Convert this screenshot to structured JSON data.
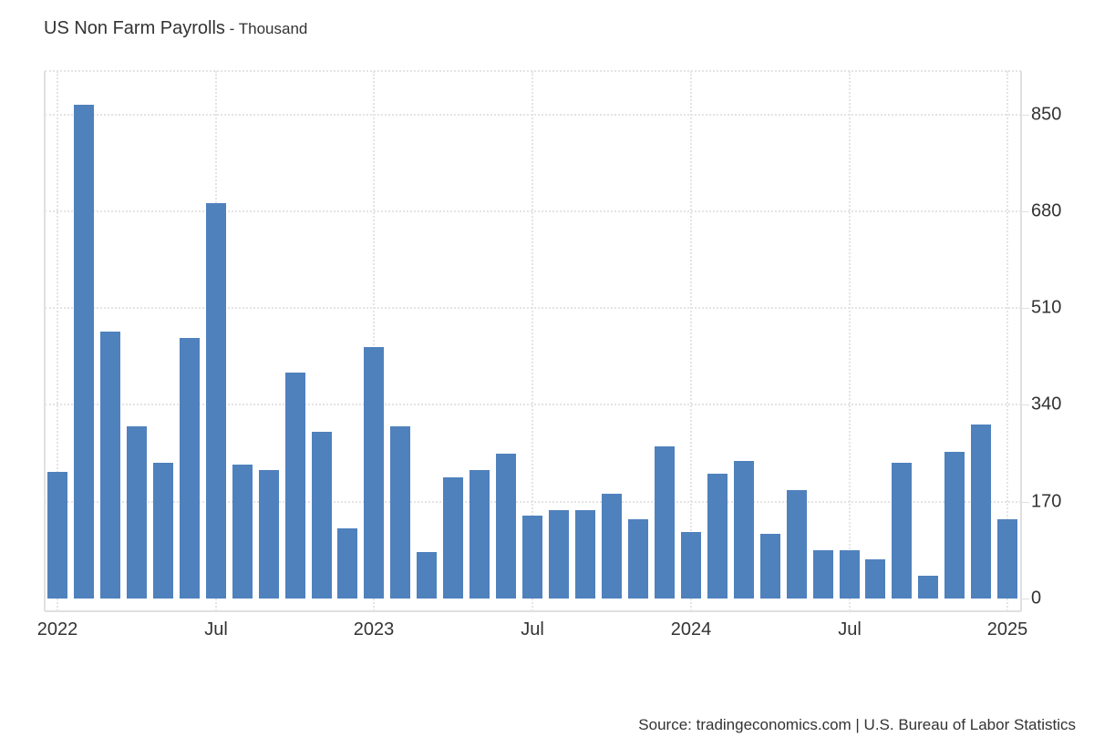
{
  "header": {
    "title": "US Non Farm Payrolls",
    "unit": " - Thousand"
  },
  "footer": {
    "source": "Source: tradingeconomics.com | U.S. Bureau of Labor Statistics"
  },
  "colors": {
    "bar": "#4f81bd",
    "grid": "#e4e4e4",
    "text": "#333333"
  },
  "chart_data": {
    "type": "bar",
    "title": "US Non Farm Payrolls",
    "subtitle": "Thousand",
    "xlabel": "",
    "ylabel": "Thousand",
    "ylim": [
      0,
      935
    ],
    "yticks": [
      0,
      170,
      340,
      510,
      680,
      850
    ],
    "xtick_labels": [
      "2022",
      "Jul",
      "2023",
      "Jul",
      "2024",
      "Jul",
      "2025"
    ],
    "grid": true,
    "y_axis_position": "right",
    "legend": null,
    "categories": [
      "Jan 2022",
      "Feb 2022",
      "Mar 2022",
      "Apr 2022",
      "May 2022",
      "Jun 2022",
      "Jul 2022",
      "Aug 2022",
      "Sep 2022",
      "Oct 2022",
      "Nov 2022",
      "Dec 2022",
      "Jan 2023",
      "Feb 2023",
      "Mar 2023",
      "Apr 2023",
      "May 2023",
      "Jun 2023",
      "Jul 2023",
      "Aug 2023",
      "Sep 2023",
      "Oct 2023",
      "Nov 2023",
      "Dec 2023",
      "Jan 2024",
      "Feb 2024",
      "Mar 2024",
      "Apr 2024",
      "May 2024",
      "Jun 2024",
      "Jul 2024",
      "Aug 2024",
      "Sep 2024",
      "Oct 2024",
      "Nov 2024",
      "Dec 2024",
      "Jan 2025"
    ],
    "values": [
      222,
      867,
      468,
      302,
      238,
      458,
      694,
      235,
      225,
      397,
      292,
      123,
      442,
      302,
      81,
      212,
      225,
      254,
      145,
      155,
      155,
      184,
      139,
      267,
      117,
      219,
      241,
      113,
      190,
      85,
      85,
      69,
      238,
      40,
      257,
      305,
      139
    ]
  }
}
